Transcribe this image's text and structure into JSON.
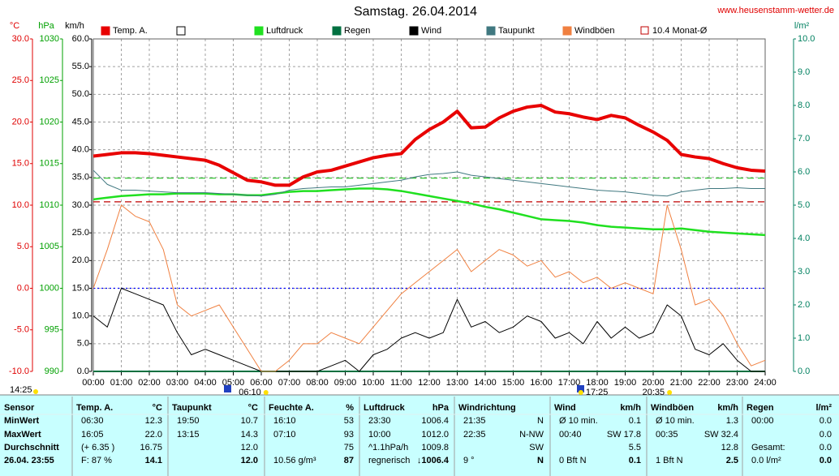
{
  "chart_data": {
    "type": "line",
    "title": "Samstag. 26.04.2014",
    "source": "www.heusenstamm-wetter.de",
    "x": [
      0,
      0.5,
      1,
      1.5,
      2,
      2.5,
      3,
      3.5,
      4,
      4.5,
      5,
      5.5,
      6,
      6.5,
      7,
      7.5,
      8,
      8.5,
      9,
      9.5,
      10,
      10.5,
      11,
      11.5,
      12,
      12.5,
      13,
      13.5,
      14,
      14.5,
      15,
      15.5,
      16,
      16.5,
      17,
      17.5,
      18,
      18.5,
      19,
      19.5,
      20,
      20.5,
      21,
      21.5,
      22,
      22.5,
      23,
      23.5,
      24
    ],
    "xlim": [
      0,
      24
    ],
    "xticks": [
      {
        "value": 0,
        "label": "00:00"
      },
      {
        "value": 1,
        "label": "01:00"
      },
      {
        "value": 2,
        "label": "02:00"
      },
      {
        "value": 3,
        "label": "03:00"
      },
      {
        "value": 4,
        "label": "04:00"
      },
      {
        "value": 5,
        "label": "05:00"
      },
      {
        "value": 6,
        "label": "06:00"
      },
      {
        "value": 7,
        "label": "07:00"
      },
      {
        "value": 8,
        "label": "08:00"
      },
      {
        "value": 9,
        "label": "09:00"
      },
      {
        "value": 10,
        "label": "10:00"
      },
      {
        "value": 11,
        "label": "11:00"
      },
      {
        "value": 12,
        "label": "12:00"
      },
      {
        "value": 13,
        "label": "13:00"
      },
      {
        "value": 14,
        "label": "14:00"
      },
      {
        "value": 15,
        "label": "15:00"
      },
      {
        "value": 16,
        "label": "16:00"
      },
      {
        "value": 17,
        "label": "17:00"
      },
      {
        "value": 18,
        "label": "18:00"
      },
      {
        "value": 19,
        "label": "19:00"
      },
      {
        "value": 20,
        "label": "20:00"
      },
      {
        "value": 21,
        "label": "21:00"
      },
      {
        "value": 22,
        "label": "22:00"
      },
      {
        "value": 23,
        "label": "23:00"
      },
      {
        "value": 24,
        "label": "24:00"
      }
    ],
    "grid": true,
    "axes": [
      {
        "label": "°C",
        "color": "#e00000",
        "lim": [
          -10,
          30
        ],
        "ticks": [
          {
            "value": -10,
            "label": "-10.0"
          },
          {
            "value": -5,
            "label": "-5.0"
          },
          {
            "value": 0,
            "label": "0.0"
          },
          {
            "value": 5,
            "label": "5.0"
          },
          {
            "value": 10,
            "label": "10.0"
          },
          {
            "value": 15,
            "label": "15.0"
          },
          {
            "value": 20,
            "label": "20.0"
          },
          {
            "value": 25,
            "label": "25.0"
          },
          {
            "value": 30,
            "label": "30.0"
          }
        ]
      },
      {
        "label": "hPa",
        "color": "#00a000",
        "lim": [
          990,
          1030
        ],
        "ticks": [
          990,
          995,
          1000,
          1005,
          1010,
          1015,
          1020,
          1025,
          1030
        ]
      },
      {
        "label": "km/h",
        "color": "#000000",
        "lim": [
          0,
          60
        ],
        "ticks": [
          {
            "value": 0,
            "label": "0.0"
          },
          {
            "value": 5,
            "label": "5.0"
          },
          {
            "value": 10,
            "label": "10.0"
          },
          {
            "value": 15,
            "label": "15.0"
          },
          {
            "value": 20,
            "label": "20.0"
          },
          {
            "value": 25,
            "label": "25.0"
          },
          {
            "value": 30,
            "label": "30.0"
          },
          {
            "value": 35,
            "label": "35.0"
          },
          {
            "value": 40,
            "label": "40.0"
          },
          {
            "value": 45,
            "label": "45.0"
          },
          {
            "value": 50,
            "label": "50.0"
          },
          {
            "value": 55,
            "label": "55.0"
          },
          {
            "value": 60,
            "label": "60.0"
          }
        ]
      },
      {
        "label": "l/m²",
        "color": "#008060",
        "lim": [
          0,
          10
        ],
        "ticks": [
          {
            "value": 0,
            "label": "0.0"
          },
          {
            "value": 1,
            "label": "1.0"
          },
          {
            "value": 2,
            "label": "2.0"
          },
          {
            "value": 3,
            "label": "3.0"
          },
          {
            "value": 4,
            "label": "4.0"
          },
          {
            "value": 5,
            "label": "5.0"
          },
          {
            "value": 6,
            "label": "6.0"
          },
          {
            "value": 7,
            "label": "7.0"
          },
          {
            "value": 8,
            "label": "8.0"
          },
          {
            "value": 9,
            "label": "9.0"
          },
          {
            "value": 10,
            "label": "10.0"
          }
        ]
      }
    ],
    "series": [
      {
        "name": "Temp. A.",
        "color": "#e80000",
        "axis": 0,
        "width": 4,
        "values": [
          15.9,
          16.1,
          16.3,
          16.3,
          16.2,
          16.0,
          15.8,
          15.6,
          15.4,
          14.8,
          13.9,
          13.0,
          12.8,
          12.4,
          12.4,
          13.4,
          14.0,
          14.2,
          14.7,
          15.2,
          15.7,
          16.0,
          16.2,
          17.9,
          19.1,
          20.0,
          21.3,
          19.3,
          19.4,
          20.5,
          21.3,
          21.8,
          22.0,
          21.2,
          21.0,
          20.6,
          20.3,
          20.8,
          20.5,
          19.6,
          18.8,
          17.8,
          16.1,
          15.8,
          15.6,
          15.0,
          14.5,
          14.2,
          14.1
        ]
      },
      {
        "name": "Luftdruck",
        "color": "#20e020",
        "axis": 1,
        "width": 2.5,
        "values": [
          1010.7,
          1010.9,
          1011.1,
          1011.2,
          1011.3,
          1011.3,
          1011.4,
          1011.4,
          1011.4,
          1011.3,
          1011.3,
          1011.2,
          1011.2,
          1011.4,
          1011.6,
          1011.7,
          1011.7,
          1011.8,
          1011.9,
          1012.0,
          1012.0,
          1011.9,
          1011.7,
          1011.4,
          1011.1,
          1010.8,
          1010.5,
          1010.2,
          1009.8,
          1009.5,
          1009.1,
          1008.7,
          1008.3,
          1008.2,
          1008.1,
          1007.9,
          1007.6,
          1007.4,
          1007.3,
          1007.2,
          1007.1,
          1007.1,
          1007.2,
          1007.0,
          1006.8,
          1006.7,
          1006.6,
          1006.5,
          1006.4
        ]
      },
      {
        "name": "Regen",
        "color": "#007040",
        "axis": 3,
        "width": 2,
        "values": [
          0,
          0,
          0,
          0,
          0,
          0,
          0,
          0,
          0,
          0,
          0,
          0,
          0,
          0,
          0,
          0,
          0,
          0,
          0,
          0,
          0,
          0,
          0,
          0,
          0,
          0,
          0,
          0,
          0,
          0,
          0,
          0,
          0,
          0,
          0,
          0,
          0,
          0,
          0,
          0,
          0,
          0,
          0,
          0,
          0,
          0,
          0,
          0,
          0
        ]
      },
      {
        "name": "Wind",
        "color": "#000000",
        "axis": 2,
        "width": 1,
        "values": [
          10,
          8,
          15,
          14,
          13,
          12,
          7,
          3,
          4,
          3,
          2,
          1,
          0,
          0,
          0,
          0,
          0,
          1,
          2,
          0,
          3,
          4,
          6,
          7,
          6,
          7,
          13,
          8,
          9,
          7,
          8,
          10,
          9,
          6,
          7,
          5,
          9,
          6,
          8,
          6,
          7,
          12,
          10,
          4,
          3,
          5,
          2,
          0,
          0
        ]
      },
      {
        "name": "Taupunkt",
        "color": "#407880",
        "axis": 0,
        "width": 1,
        "values": [
          14.2,
          12.5,
          11.8,
          11.8,
          11.7,
          11.6,
          11.5,
          11.5,
          11.5,
          11.4,
          11.3,
          11.2,
          11.1,
          11.3,
          11.8,
          12.0,
          12.1,
          12.2,
          12.2,
          12.4,
          12.6,
          12.8,
          13.0,
          13.4,
          13.7,
          13.8,
          14.0,
          13.6,
          13.4,
          13.2,
          13.0,
          12.8,
          12.6,
          12.4,
          12.2,
          12.0,
          11.8,
          11.7,
          11.6,
          11.4,
          11.2,
          11.1,
          11.6,
          11.8,
          12.0,
          12.0,
          12.1,
          12.0,
          12.0
        ]
      },
      {
        "name": "Windböen",
        "color": "#f08040",
        "axis": 2,
        "width": 1,
        "values": [
          15,
          22,
          30,
          28,
          27,
          22,
          12,
          10,
          11,
          12,
          8,
          4,
          0,
          0,
          2,
          5,
          5,
          7,
          6,
          5,
          8,
          11,
          14,
          16,
          18,
          20,
          22,
          18,
          20,
          22,
          21,
          19,
          20,
          17,
          18,
          16,
          17,
          15,
          16,
          15,
          14,
          30,
          22,
          12,
          13,
          10,
          5,
          1,
          2
        ]
      }
    ],
    "reference_lines": [
      {
        "name": "10.4 Monat-Ø",
        "value": 10.4,
        "axis": 0,
        "color": "#c00000",
        "dash": "8 5"
      },
      {
        "value": 1013.25,
        "axis": 1,
        "color": "#20c020",
        "dash": "8 5"
      },
      {
        "value": 0,
        "axis": 0,
        "color": "#0000ff",
        "dash": "2 3"
      }
    ],
    "annotations": [
      {
        "label": "06:10",
        "x": 6.1667
      },
      {
        "label": "17:25",
        "x": 17.4167
      },
      {
        "label": "20:35",
        "x": 20.5833
      }
    ],
    "corner_time": "14:25"
  },
  "table": {
    "rows": [
      [
        [
          "Sensor",
          null
        ],
        [
          "Temp. A.",
          "°C"
        ],
        [
          "Taupunkt",
          "°C"
        ],
        [
          "Feuchte A.",
          "%"
        ],
        [
          "Luftdruck",
          "hPa"
        ],
        [
          "Windrichtung",
          null
        ],
        [
          "Wind",
          "km/h"
        ],
        [
          "Windböen",
          "km/h"
        ],
        [
          "Regen",
          "l/m²"
        ]
      ],
      [
        [
          "MinWert",
          null
        ],
        [
          "06:30",
          "12.3"
        ],
        [
          "19:50",
          "10.7"
        ],
        [
          "16:10",
          "53"
        ],
        [
          "23:30",
          "1006.4"
        ],
        [
          "21:35",
          "N"
        ],
        [
          "Ø 10 min.",
          "0.1"
        ],
        [
          "Ø 10 min.",
          "1.3"
        ],
        [
          "00:00",
          "0.0"
        ]
      ],
      [
        [
          "MaxWert",
          null
        ],
        [
          "16:05",
          "22.0"
        ],
        [
          "13:15",
          "14.3"
        ],
        [
          "07:10",
          "93"
        ],
        [
          "10:00",
          "1012.0"
        ],
        [
          "22:35",
          "N-NW"
        ],
        [
          "00:40",
          "SW 17.8"
        ],
        [
          "00:35",
          "SW 32.4"
        ],
        [
          null,
          "0.0"
        ]
      ],
      [
        [
          "Durchschnitt",
          null
        ],
        [
          "(+ 6.35 )",
          "16.75"
        ],
        [
          null,
          "12.0"
        ],
        [
          null,
          "75"
        ],
        [
          "^1.1hPa/h",
          "1009.8"
        ],
        [
          null,
          "SW"
        ],
        [
          null,
          "5.5"
        ],
        [
          null,
          "12.8"
        ],
        [
          "Gesamt:",
          "0.0"
        ]
      ],
      [
        [
          "26.04. 23:55",
          null
        ],
        [
          "F: 87 %",
          "14.1"
        ],
        [
          null,
          "12.0"
        ],
        [
          "10.56 g/m³",
          "87"
        ],
        [
          "regnerisch",
          "↓1006.4"
        ],
        [
          "9 °",
          "N"
        ],
        [
          "0 Bft N",
          "0.1"
        ],
        [
          "1 Bft N",
          "2.5"
        ],
        [
          "0.0 l/m²",
          "0.0"
        ]
      ]
    ]
  }
}
